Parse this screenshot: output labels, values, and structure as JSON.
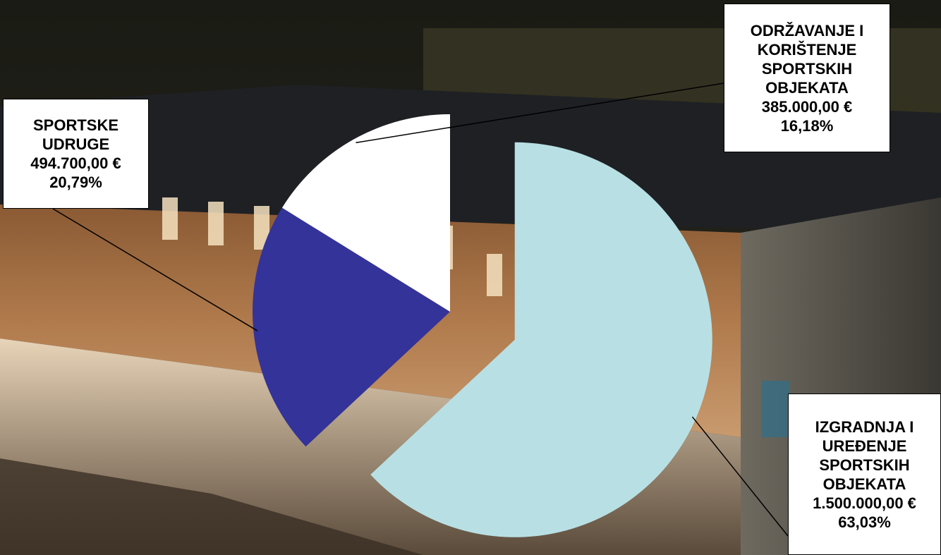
{
  "chart_data": {
    "type": "pie",
    "title": "",
    "start_angle_deg": 0,
    "direction": "clockwise",
    "exploded_slice": 0,
    "slices": [
      {
        "name": "IZGRADNJA I UREĐENJE SPORTSKIH OBJEKATA",
        "value": 1500000.0,
        "percent": 63.03,
        "color": "#b8e0e4",
        "label_lines": [
          "IZGRADNJA I",
          "UREĐENJE",
          "SPORTSKIH",
          "OBJEKATA",
          "1.500.000,00 €",
          "63,03%"
        ]
      },
      {
        "name": "SPORTSKE UDRUGE",
        "value": 494700.0,
        "percent": 20.79,
        "color": "#343399",
        "label_lines": [
          "SPORTSKE",
          "UDRUGE",
          "494.700,00 €",
          "20,79%"
        ]
      },
      {
        "name": "ODRŽAVANJE I KORIŠTENJE SPORTSKIH OBJEKATA",
        "value": 385000.0,
        "percent": 16.18,
        "color": "#ffffff",
        "label_lines": [
          "ODRŽAVANJE I",
          "KORIŠTENJE",
          "SPORTSKIH",
          "OBJEKATA",
          "385.000,00 €",
          "16,18%"
        ]
      }
    ],
    "legend": "none",
    "background": "photo of sports hall at night"
  }
}
